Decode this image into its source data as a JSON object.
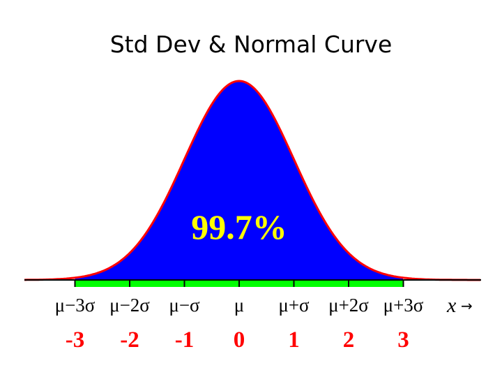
{
  "title": "Std Dev & Normal Curve",
  "colors": {
    "fill": "#0000ff",
    "outline": "#ff0000",
    "axis_band": "#00ff00",
    "percent_text": "#ffff00",
    "z_text": "#ff0000",
    "tick_text": "#000000"
  },
  "percent_label": "99.7%",
  "axis_var_label": "x",
  "axis_arrow": "→",
  "ticks": [
    {
      "label": "μ−3σ",
      "z": "-3"
    },
    {
      "label": "μ−2σ",
      "z": "-2"
    },
    {
      "label": "μ−σ",
      "z": "-1"
    },
    {
      "label": "μ",
      "z": "0"
    },
    {
      "label": "μ+σ",
      "z": "1"
    },
    {
      "label": "μ+2σ",
      "z": "2"
    },
    {
      "label": "μ+3σ",
      "z": "3"
    }
  ],
  "chart_data": {
    "type": "area",
    "x": [
      -3,
      -2,
      -1,
      0,
      1,
      2,
      3
    ],
    "shaded_interval": [
      -3,
      3
    ],
    "shaded_percent": 99.7
  }
}
